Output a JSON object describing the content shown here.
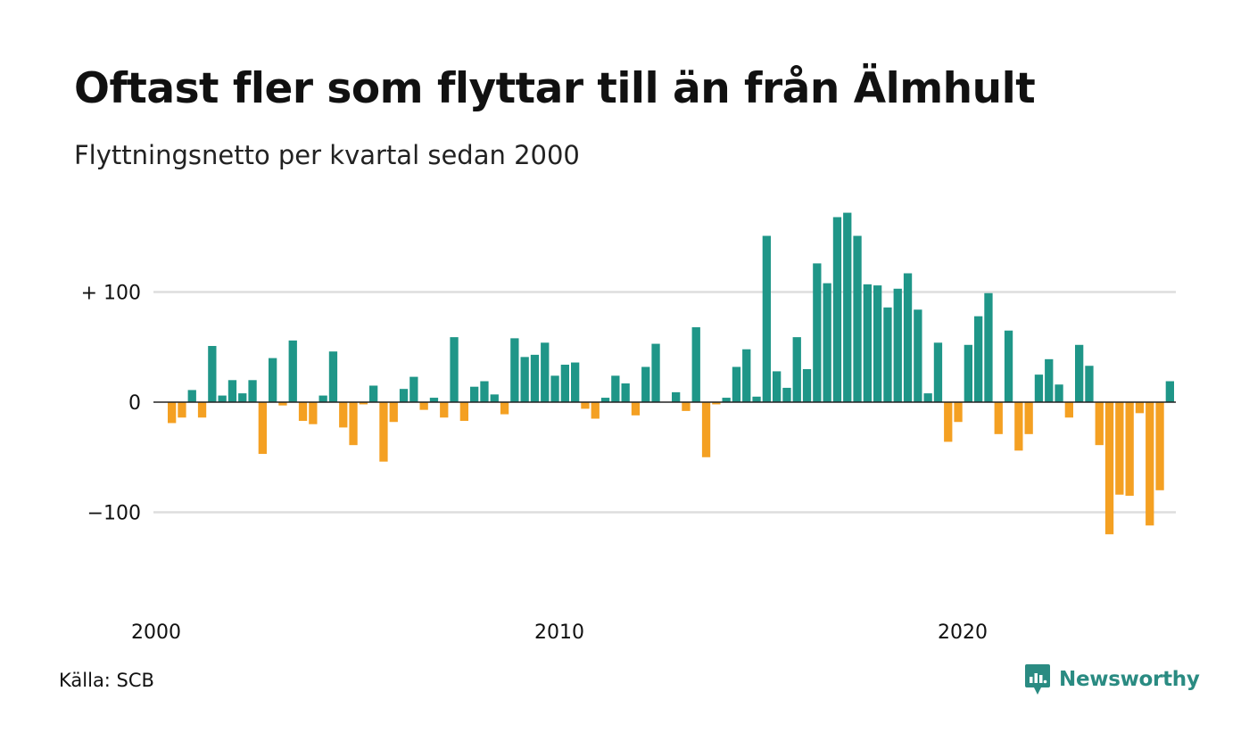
{
  "header": {
    "title": "Oftast fler som flyttar till än från Älmhult",
    "subtitle": "Flyttningsnetto per kvartal sedan 2000"
  },
  "footer": {
    "source": "Källa: SCB",
    "brand": "Newsworthy"
  },
  "colors": {
    "positive": "#1f9688",
    "negative": "#f4a022",
    "grid": "#dddddd",
    "baseline": "#222222",
    "brand": "#2a8b82"
  },
  "chart_data": {
    "type": "bar",
    "x_start": "2000",
    "frequency": "quarterly",
    "x_tick_labels": [
      "2000",
      "2010",
      "2020"
    ],
    "y_tick_labels": [
      "+ 100",
      "0",
      "−100"
    ],
    "y_ticks": [
      100,
      0,
      -100
    ],
    "ylim": [
      -160,
      180
    ],
    "grid": true,
    "values": [
      -19,
      -14,
      11,
      -14,
      51,
      6,
      20,
      8,
      20,
      -47,
      40,
      -3,
      56,
      -17,
      -20,
      6,
      46,
      -23,
      -39,
      -2,
      15,
      -54,
      -18,
      12,
      23,
      -7,
      4,
      -14,
      59,
      -17,
      14,
      19,
      7,
      -11,
      58,
      41,
      43,
      54,
      24,
      34,
      36,
      -6,
      -15,
      4,
      24,
      17,
      -12,
      32,
      53,
      0,
      9,
      -8,
      68,
      -50,
      -2,
      4,
      32,
      48,
      5,
      151,
      28,
      13,
      59,
      30,
      126,
      108,
      168,
      172,
      151,
      107,
      106,
      86,
      103,
      117,
      84,
      8,
      54,
      -36,
      -18,
      52,
      78,
      99,
      -29,
      65,
      -44,
      -29,
      25,
      39,
      16,
      -14,
      52,
      33,
      -39,
      -120,
      -84,
      -85,
      -10,
      -112,
      -80,
      19
    ]
  }
}
